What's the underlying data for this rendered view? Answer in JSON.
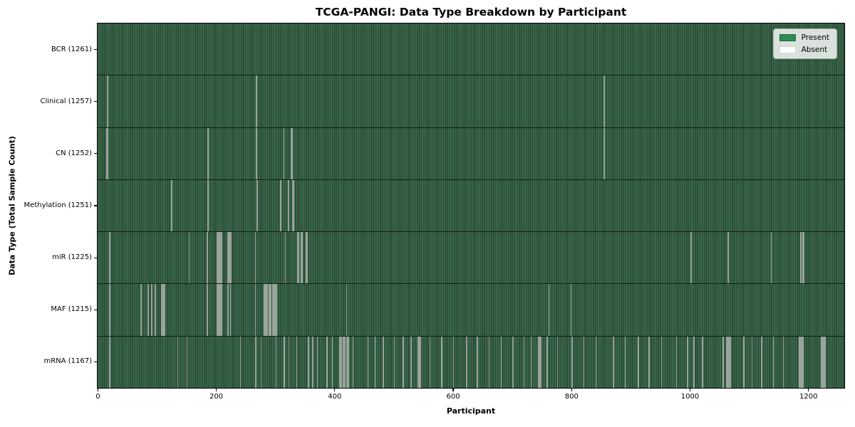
{
  "title": "TCGA-PANGI: Data Type Breakdown by Participant",
  "chart_data": {
    "type": "heatmap",
    "title": "TCGA-PANGI: Data Type Breakdown by Participant",
    "xlabel": "Participant",
    "ylabel": "Data Type (Total Sample Count)",
    "x_ticks": [
      0,
      200,
      400,
      600,
      800,
      1000,
      1200
    ],
    "xlim": [
      0,
      1261
    ],
    "n_participants": 1261,
    "grid": false,
    "legend": {
      "position": "upper right",
      "entries": [
        {
          "label": "Present",
          "color": "#2e8b57"
        },
        {
          "label": "Absent",
          "color": "#ffffff"
        }
      ]
    },
    "colors": {
      "present": "#2e8b57",
      "present_stripe_light": "#3e6e51",
      "present_stripe_dark": "#274530",
      "absent_line": "#9ba49c",
      "row_divider": "#101d14",
      "frame": "#000000"
    },
    "rows": [
      {
        "label": "BCR (1261)",
        "data_type": "BCR",
        "total": 1261,
        "absent": []
      },
      {
        "label": "Clinical (1257)",
        "data_type": "Clinical",
        "total": 1257,
        "absent": [
          15,
          16,
          267,
          854
        ]
      },
      {
        "label": "CN (1252)",
        "data_type": "CN",
        "total": 1252,
        "absent": [
          14,
          15,
          16,
          185,
          267,
          313,
          326,
          327,
          854
        ]
      },
      {
        "label": "Methylation (1251)",
        "data_type": "Methylation",
        "total": 1251,
        "absent": [
          124,
          185,
          186,
          268,
          307,
          308,
          321,
          328,
          329,
          330
        ]
      },
      {
        "label": "miR (1225)",
        "data_type": "miR",
        "total": 1225,
        "absent": [
          19,
          153,
          184,
          200,
          201,
          202,
          203,
          204,
          205,
          206,
          207,
          208,
          218,
          219,
          220,
          222,
          223,
          224,
          265,
          316,
          337,
          338,
          343,
          344,
          351,
          352,
          353,
          1001,
          1063,
          1064,
          1136,
          1186,
          1187,
          1190,
          1191,
          1192
        ]
      },
      {
        "label": "MAF (1215)",
        "data_type": "MAF",
        "total": 1215,
        "absent": [
          19,
          72,
          73,
          84,
          85,
          90,
          91,
          96,
          97,
          107,
          108,
          109,
          110,
          111,
          112,
          184,
          200,
          201,
          202,
          203,
          204,
          205,
          206,
          207,
          208,
          219,
          223,
          265,
          280,
          282,
          284,
          286,
          288,
          290,
          292,
          294,
          295,
          296,
          297,
          298,
          299,
          300,
          301,
          419,
          761,
          798
        ]
      },
      {
        "label": "mRNA (1167)",
        "data_type": "mRNA",
        "total": 1167,
        "absent": [
          19,
          134,
          150,
          240,
          266,
          275,
          300,
          314,
          322,
          335,
          355,
          362,
          370,
          386,
          395,
          407,
          409,
          411,
          413,
          415,
          417,
          419,
          421,
          423,
          430,
          455,
          467,
          481,
          500,
          515,
          528,
          540,
          541,
          542,
          543,
          544,
          560,
          580,
          600,
          622,
          640,
          660,
          680,
          700,
          719,
          731,
          743,
          744,
          745,
          746,
          747,
          748,
          758,
          775,
          800,
          820,
          840,
          870,
          890,
          912,
          930,
          951,
          976,
          995,
          1006,
          1020,
          1055,
          1061,
          1062,
          1063,
          1064,
          1065,
          1066,
          1067,
          1068,
          1090,
          1104,
          1120,
          1140,
          1157,
          1184,
          1185,
          1186,
          1187,
          1188,
          1189,
          1190,
          1221,
          1222,
          1223,
          1224,
          1225,
          1226,
          1227
        ]
      }
    ]
  }
}
